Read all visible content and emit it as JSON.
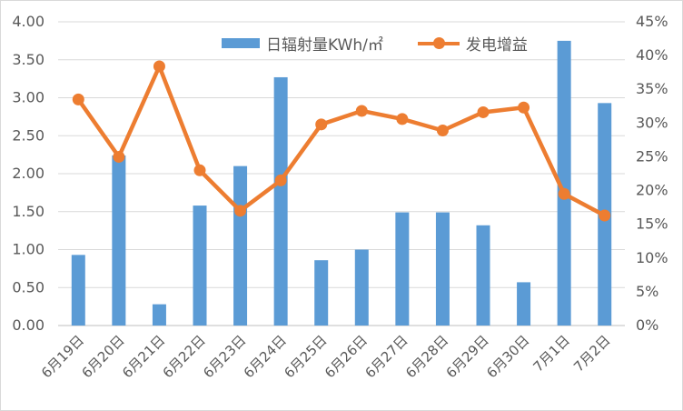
{
  "chart_data": {
    "type": "combo",
    "categories": [
      "6月19日",
      "6月20日",
      "6月21日",
      "6月22日",
      "6月23日",
      "6月24日",
      "6月25日",
      "6月26日",
      "6月27日",
      "6月28日",
      "6月29日",
      "6月30日",
      "7月1日",
      "7月2日"
    ],
    "series": [
      {
        "name": "日辐射量KWh/㎡",
        "type": "bar",
        "axis": "left",
        "color": "#5b9bd5",
        "values": [
          0.93,
          2.24,
          0.28,
          1.58,
          2.1,
          3.27,
          0.86,
          1.0,
          1.49,
          1.49,
          1.32,
          0.57,
          3.75,
          2.93
        ]
      },
      {
        "name": "发电增益",
        "type": "line",
        "axis": "right",
        "color": "#ed7d31",
        "values": [
          33.5,
          25.0,
          38.4,
          23.0,
          17.0,
          21.5,
          29.8,
          31.8,
          30.6,
          28.9,
          31.6,
          32.3,
          19.5,
          16.3
        ]
      }
    ],
    "left_axis": {
      "min": 0,
      "max": 4,
      "step": 0.5,
      "tick_labels": [
        "0.00",
        "0.50",
        "1.00",
        "1.50",
        "2.00",
        "2.50",
        "3.00",
        "3.50",
        "4.00"
      ]
    },
    "right_axis": {
      "min": 0,
      "max": 45,
      "step": 5,
      "tick_labels": [
        "0%",
        "5%",
        "10%",
        "15%",
        "20%",
        "25%",
        "30%",
        "35%",
        "40%",
        "45%"
      ]
    },
    "grid": true,
    "legend_position": "top",
    "title": "",
    "xlabel": "",
    "ylabel": ""
  },
  "colors": {
    "bar": "#5b9bd5",
    "line": "#ed7d31",
    "gridline": "#d9d9d9",
    "axis_line": "#bfbfbf",
    "tick_text": "#595959",
    "background": "#ffffff",
    "frame_border": "#d9d9d9"
  }
}
